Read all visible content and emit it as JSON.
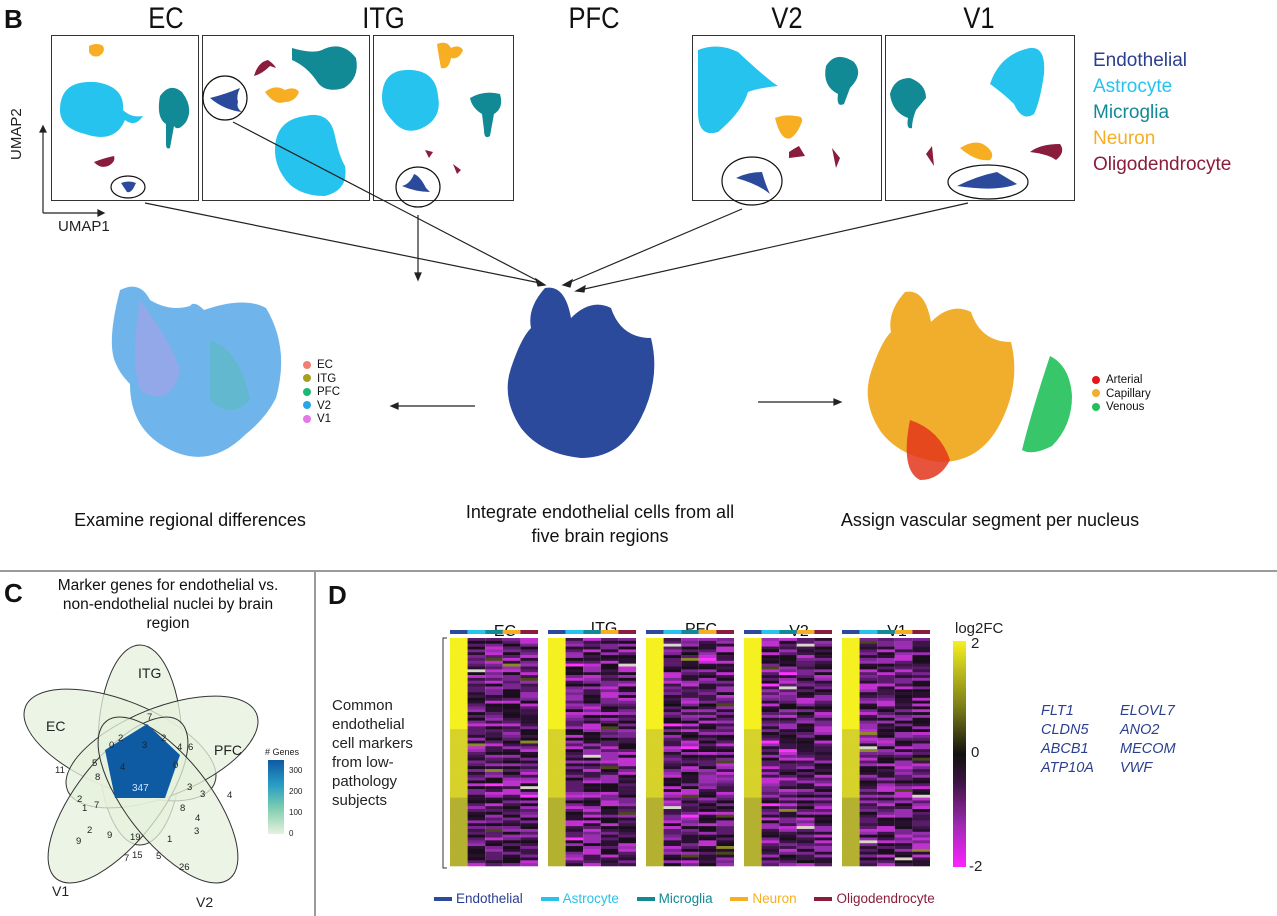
{
  "panel_b": {
    "letter": "B",
    "regions": [
      "EC",
      "ITG",
      "PFC",
      "V2",
      "V1"
    ],
    "axis_x": "UMAP1",
    "axis_y": "UMAP2",
    "cell_types": [
      {
        "label": "Endothelial",
        "color": "#2b4a9c"
      },
      {
        "label": "Astrocyte",
        "color": "#26c3ee"
      },
      {
        "label": "Microglia",
        "color": "#128a96"
      },
      {
        "label": "Neuron",
        "color": "#f7ae22"
      },
      {
        "label": "Oligodendrocyte",
        "color": "#8a1c3c"
      }
    ],
    "left_caption": "Examine regional differences",
    "center_caption_line1": "Integrate endothelial cells from all",
    "center_caption_line2": "five brain regions",
    "right_caption": "Assign vascular segment per nucleus",
    "region_legend": [
      {
        "label": "EC",
        "color": "#f27e73"
      },
      {
        "label": "ITG",
        "color": "#a5a020"
      },
      {
        "label": "PFC",
        "color": "#1fb774"
      },
      {
        "label": "V2",
        "color": "#27a7e6"
      },
      {
        "label": "V1",
        "color": "#e478e8"
      }
    ],
    "segment_legend": [
      {
        "label": "Arterial",
        "color": "#e3161b"
      },
      {
        "label": "Capillary",
        "color": "#f1ae2c"
      },
      {
        "label": "Venous",
        "color": "#22c05a"
      }
    ]
  },
  "panel_c": {
    "letter": "C",
    "title_line1": "Marker genes for endothelial vs.",
    "title_line2": "non-endothelial nuclei by brain",
    "title_line3": "region",
    "sets": [
      "ITG",
      "EC",
      "PFC",
      "V1",
      "V2"
    ],
    "colorbar_title": "# Genes",
    "colorbar_ticks": [
      "300",
      "200",
      "100",
      "0"
    ],
    "center_value": "347",
    "region_counts": [
      "7",
      "2",
      "2",
      "0",
      "3",
      "4",
      "6",
      "11",
      "5",
      "8",
      "4",
      "0",
      "3",
      "3",
      "4",
      "2",
      "1",
      "7",
      "8",
      "4",
      "2",
      "9",
      "19",
      "1",
      "3",
      "9",
      "7",
      "15",
      "5",
      "26"
    ]
  },
  "panel_d": {
    "letter": "D",
    "regions": [
      "EC",
      "ITG",
      "PFC",
      "V2",
      "V1"
    ],
    "row_label_lines": [
      "Common",
      "endothelial",
      "cell markers",
      "from low-",
      "pathology",
      "subjects"
    ],
    "colorbar_title": "log2FC",
    "colorbar_max": "2",
    "colorbar_mid": "0",
    "colorbar_min": "-2",
    "genes_col1": [
      "FLT1",
      "CLDN5",
      "ABCB1",
      "ATP10A"
    ],
    "genes_col2": [
      "ELOVL7",
      "ANO2",
      "MECOM",
      "VWF"
    ],
    "legend": [
      {
        "label": "Endothelial",
        "color": "#2b4a9c"
      },
      {
        "label": "Astrocyte",
        "color": "#26c3ee"
      },
      {
        "label": "Microglia",
        "color": "#128a96"
      },
      {
        "label": "Neuron",
        "color": "#f7ae22"
      },
      {
        "label": "Oligodendrocyte",
        "color": "#8a1c3c"
      }
    ]
  }
}
